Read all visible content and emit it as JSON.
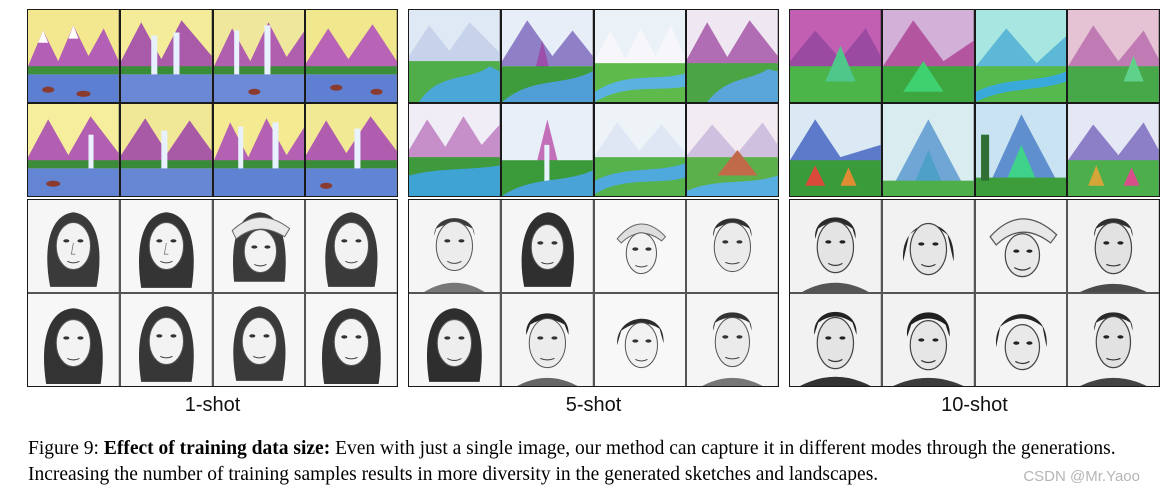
{
  "figure": {
    "columns": [
      {
        "label": "1-shot"
      },
      {
        "label": "5-shot"
      },
      {
        "label": "10-shot"
      }
    ],
    "caption": {
      "prefix": "Figure 9: ",
      "title": "Effect of training data size:",
      "text": " Even with just a single image, our method can capture it in different modes through the generations. Increasing the number of training samples results in more diversity in the generated sketches and landscapes."
    },
    "watermark": "CSDN @Mr.Yaoo"
  }
}
